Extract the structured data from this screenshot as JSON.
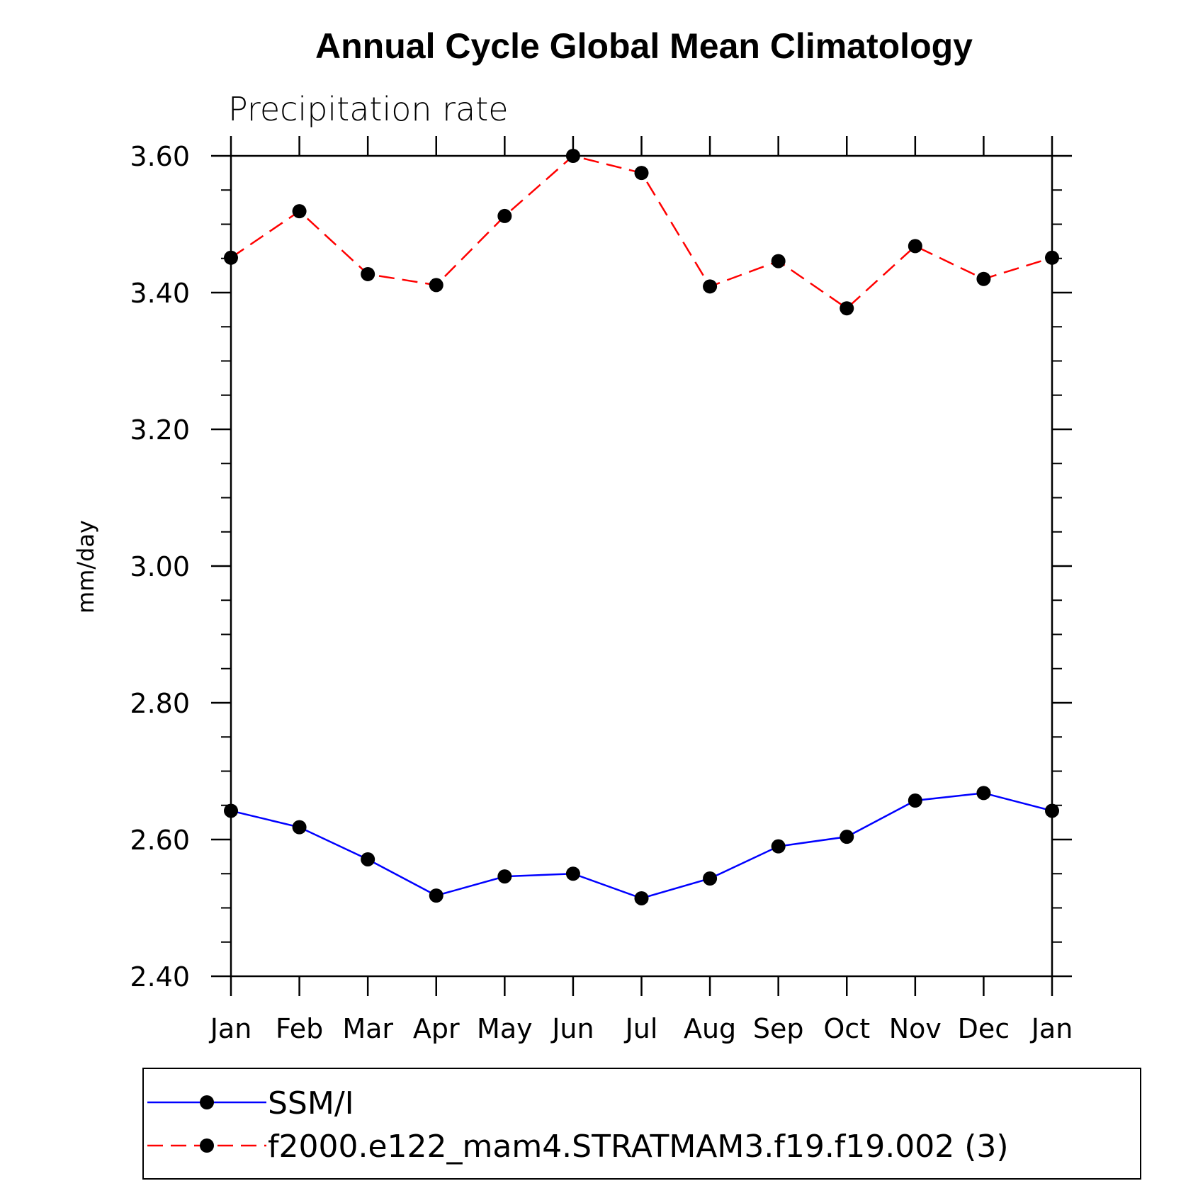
{
  "chart_data": {
    "type": "line",
    "title": "Annual Cycle Global Mean Climatology",
    "subtitle": "Precipitation rate",
    "ylabel": "mm/day",
    "xlabel": "",
    "categories": [
      "Jan",
      "Feb",
      "Mar",
      "Apr",
      "May",
      "Jun",
      "Jul",
      "Aug",
      "Sep",
      "Oct",
      "Nov",
      "Dec",
      "Jan"
    ],
    "ylim": [
      2.4,
      3.6
    ],
    "yticks": [
      "2.40",
      "2.60",
      "2.80",
      "3.00",
      "3.20",
      "3.40",
      "3.60"
    ],
    "ytick_values": [
      2.4,
      2.6,
      2.8,
      3.0,
      3.2,
      3.4,
      3.6
    ],
    "grid": false,
    "legend_position": "bottom",
    "series": [
      {
        "name": "SSM/I",
        "color": "#0000ff",
        "dash": "solid",
        "marker": "filled-circle",
        "values": [
          2.642,
          2.618,
          2.571,
          2.518,
          2.546,
          2.55,
          2.514,
          2.543,
          2.59,
          2.604,
          2.657,
          2.668,
          2.642
        ]
      },
      {
        "name": "f2000.e122_mam4.STRATMAM3.f19.f19.002 (3)",
        "color": "#ff0000",
        "dash": "dashed",
        "marker": "filled-circle",
        "values": [
          3.451,
          3.519,
          3.427,
          3.411,
          3.512,
          3.6,
          3.575,
          3.409,
          3.446,
          3.377,
          3.468,
          3.42,
          3.451
        ]
      }
    ]
  }
}
